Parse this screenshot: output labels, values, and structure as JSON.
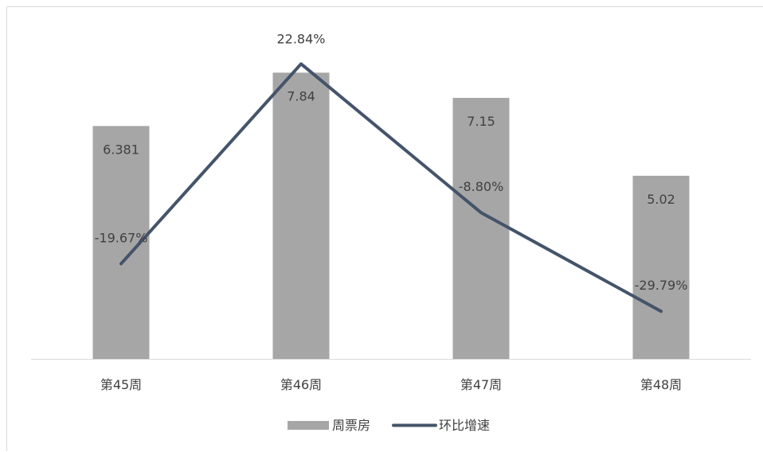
{
  "chart_data": {
    "type": "bar",
    "categories": [
      "第45周",
      "第46周",
      "第47周",
      "第48周"
    ],
    "series": [
      {
        "name": "周票房",
        "type": "bar",
        "values": [
          6.381,
          7.84,
          7.15,
          5.02
        ],
        "labels": [
          "6.381",
          "7.84",
          "7.15",
          "5.02"
        ],
        "color": "#a6a6a6"
      },
      {
        "name": "环比增速",
        "type": "line",
        "axis": "secondary",
        "values": [
          -19.67,
          22.84,
          -8.8,
          -29.79
        ],
        "labels": [
          "-19.67%",
          "22.84%",
          "-8.80%",
          "-29.79%"
        ],
        "color": "#44546a"
      }
    ],
    "primary_ylim": [
      0,
      9
    ],
    "secondary_ylim": [
      -40,
      30
    ],
    "legend_position": "bottom",
    "grid": false,
    "title": "",
    "xlabel": "",
    "ylabel": ""
  }
}
